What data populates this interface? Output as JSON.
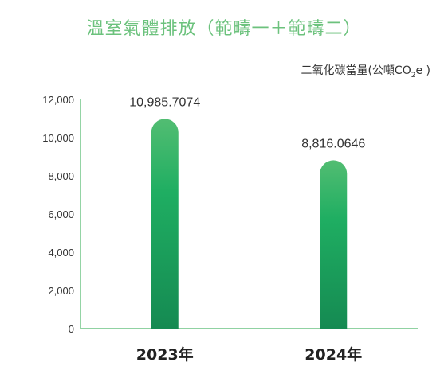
{
  "title": "溫室氣體排放（範疇一＋範疇二）",
  "unit": {
    "prefix": "二氧化碳當量(公噸CO",
    "sub": "2",
    "suffix": "e )"
  },
  "colors": {
    "title": "#6cc27d",
    "axis": "#4db86a",
    "bar_top": "#52bd72",
    "bar_mid": "#1fae62",
    "bar_bottom": "#158a52"
  },
  "chart_data": {
    "type": "bar",
    "categories": [
      "2023年",
      "2024年"
    ],
    "values": [
      10985.7074,
      8816.0646
    ],
    "data_labels": [
      "10,985.7074",
      "8,816.0646"
    ],
    "ylim": [
      0,
      12000
    ],
    "yticks": [
      0,
      2000,
      4000,
      6000,
      8000,
      10000,
      12000
    ],
    "ytick_labels": [
      "0",
      "2,000",
      "4,000",
      "6,000",
      "8,000",
      "10,000",
      "12,000"
    ],
    "grid": false
  }
}
